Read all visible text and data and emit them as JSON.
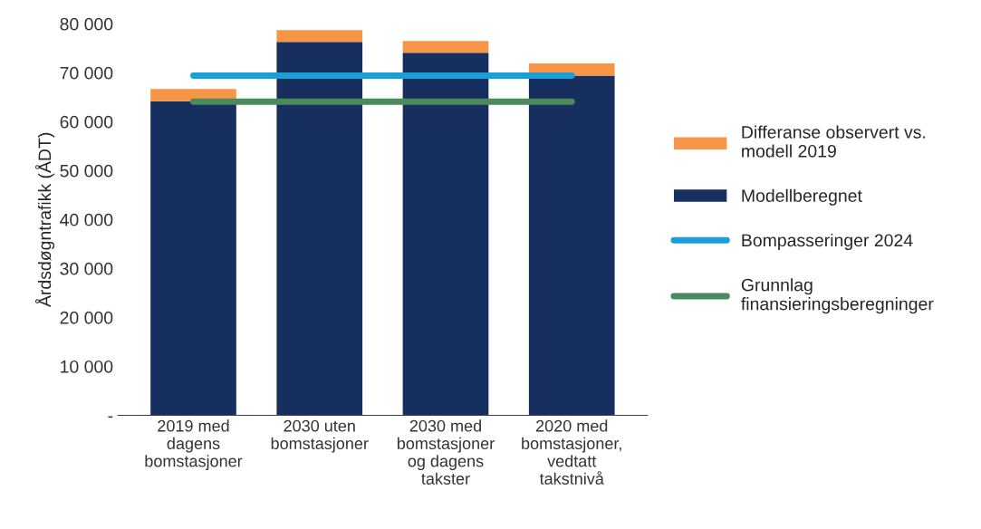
{
  "chart_data": {
    "type": "bar",
    "stacked": true,
    "ylabel": "Årdsdøgntrafikk (ÅDT)",
    "categories": [
      "2019 med\ndagens\nbomstasjoner",
      "2030 uten\nbomstasjoner",
      "2030 med\nbomstasjoner\nog dagens\ntakster",
      "2020 med\nbomstasjoner,\nvedtatt\ntakstnivå"
    ],
    "series": [
      {
        "name": "Modellberegnet",
        "color": "#172f5e",
        "values": [
          64200,
          76300,
          74100,
          69400
        ]
      },
      {
        "name": "Differanse observert vs.\nmodell 2019",
        "color": "#f79646",
        "values": [
          2500,
          2400,
          2400,
          2500
        ]
      },
      {
        "name": "Bompasseringer 2024",
        "type": "line",
        "color": "#1a9fd6",
        "values": [
          69400,
          69400,
          69400,
          69400
        ]
      },
      {
        "name": "Grunnlag\nfinansieringsberegninger",
        "type": "line",
        "color": "#4a8a5c",
        "values": [
          64100,
          64100,
          64100,
          64100
        ]
      }
    ],
    "ylim": [
      0,
      80000
    ],
    "yticks": [
      {
        "value": 0,
        "label": "-"
      },
      {
        "value": 10000,
        "label": "10 000"
      },
      {
        "value": 20000,
        "label": "20 000"
      },
      {
        "value": 30000,
        "label": "30 000"
      },
      {
        "value": 40000,
        "label": "40 000"
      },
      {
        "value": 50000,
        "label": "50 000"
      },
      {
        "value": 60000,
        "label": "60 000"
      },
      {
        "value": 70000,
        "label": "70 000"
      },
      {
        "value": 80000,
        "label": "80 000"
      }
    ],
    "grid": false,
    "legend": "right"
  }
}
